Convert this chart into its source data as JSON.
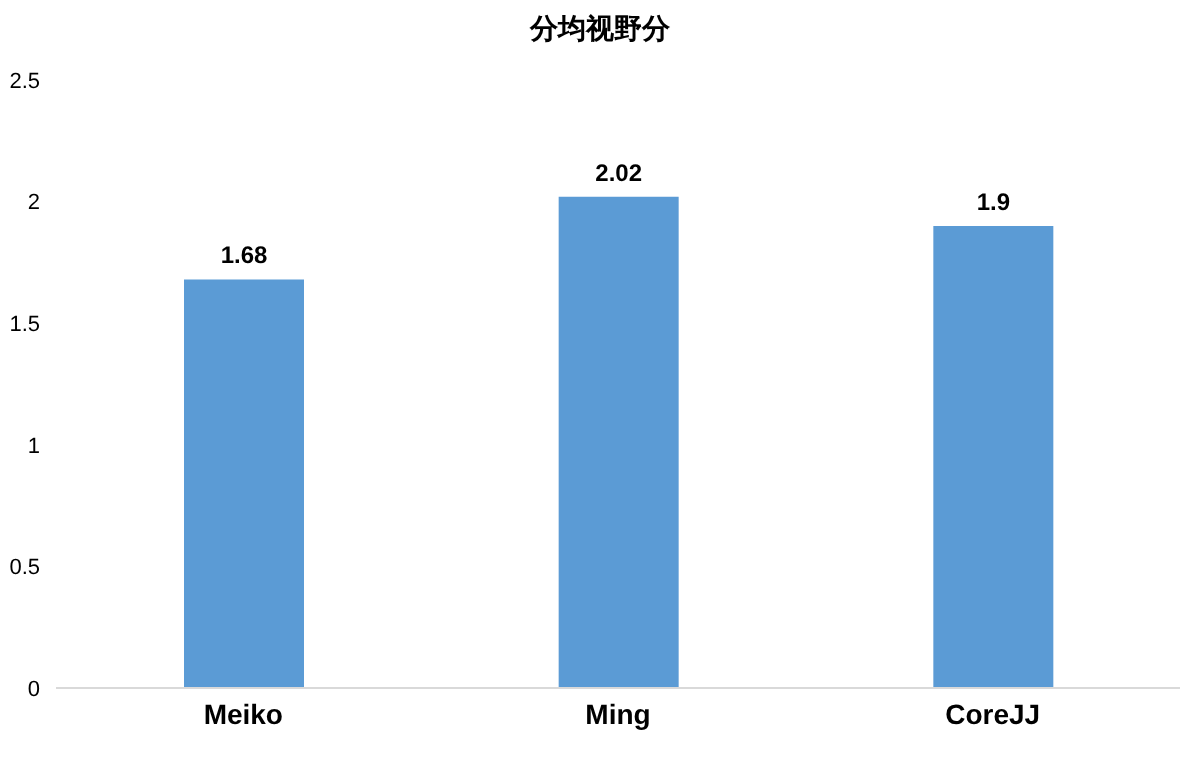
{
  "chart_data": {
    "type": "bar",
    "title": "分均视野分",
    "categories": [
      "Meiko",
      "Ming",
      "CoreJJ"
    ],
    "values": [
      1.68,
      2.02,
      1.9
    ],
    "color": "#5b9bd5",
    "ylim": [
      0,
      2.5
    ],
    "yticks": [
      0,
      0.5,
      1,
      1.5,
      2,
      2.5
    ],
    "grid": false,
    "data_labels": true
  }
}
